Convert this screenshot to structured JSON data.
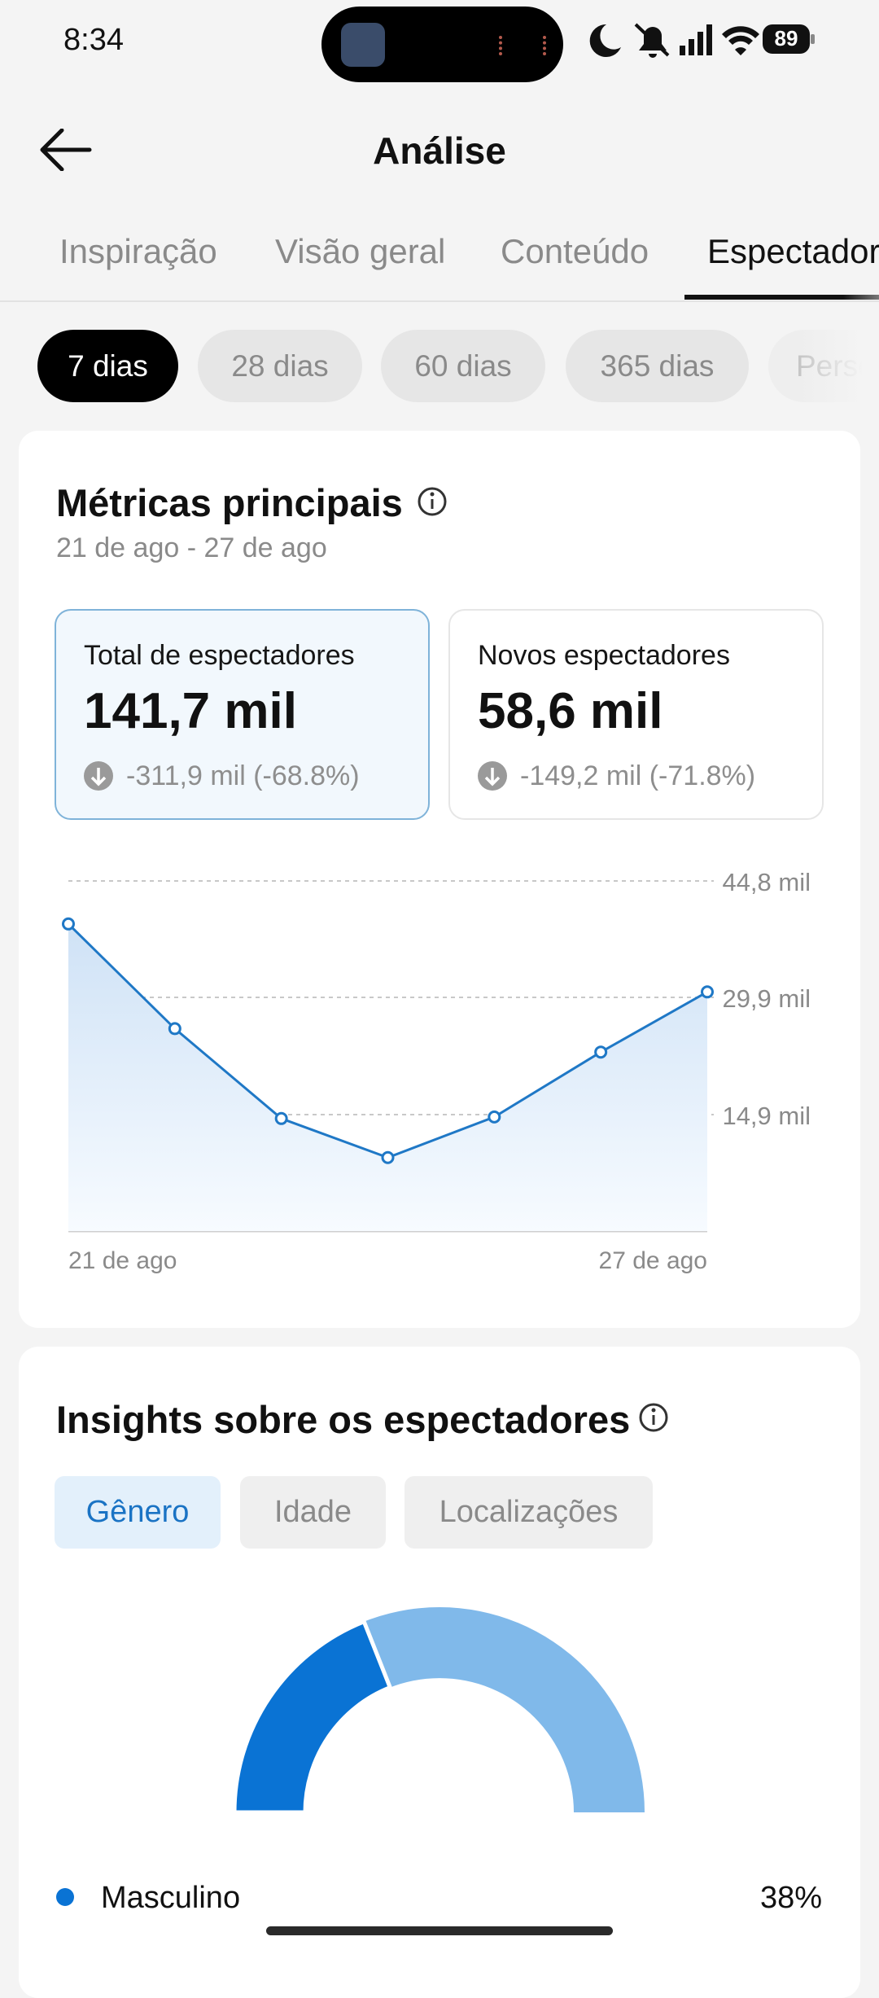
{
  "status_bar": {
    "time": "8:34",
    "battery": "89"
  },
  "header": {
    "title": "Análise"
  },
  "tabs": [
    "Inspiração",
    "Visão geral",
    "Conteúdo",
    "Espectadores"
  ],
  "periods": [
    "7 dias",
    "28 dias",
    "60 dias",
    "365 dias",
    "Personalizado"
  ],
  "metrics_card": {
    "title": "Métricas principais",
    "date_range": "21 de ago - 27 de ago",
    "metrics": [
      {
        "label": "Total de espectadores",
        "value": "141,7 mil",
        "change": "-311,9 mil (-68.8%)"
      },
      {
        "label": "Novos espectadores",
        "value": "58,6 mil",
        "change": "-149,2 mil (-71.8%)"
      }
    ]
  },
  "insights_card": {
    "title": "Insights sobre os espectadores",
    "segments": [
      "Gênero",
      "Idade",
      "Localizações"
    ]
  },
  "chart_data": [
    {
      "type": "line",
      "categories": [
        "21 de ago",
        null,
        null,
        null,
        null,
        null,
        "27 de ago"
      ],
      "series": [
        {
          "color": "#1f78c6",
          "values": [
            39300,
            25900,
            14400,
            9400,
            14600,
            22900,
            30600
          ]
        }
      ],
      "ylim": [
        0,
        44800
      ],
      "yticks": [
        {
          "value": 14900,
          "label": "14,9 mil"
        },
        {
          "value": 29900,
          "label": "29,9 mil"
        },
        {
          "value": 44800,
          "label": "44,8 mil"
        }
      ],
      "grid": true
    },
    {
      "type": "pie",
      "categories": [
        "Masculino"
      ],
      "values": [
        38
      ],
      "value_labels": [
        "38%"
      ],
      "color": "#0a73d4"
    }
  ]
}
